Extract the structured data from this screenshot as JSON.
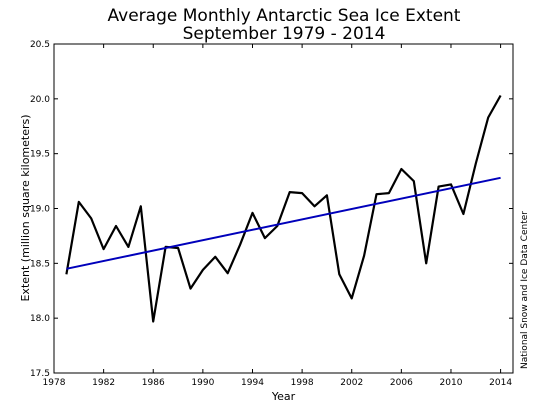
{
  "chart_data": {
    "type": "line",
    "title": "Average Monthly Antarctic Sea Ice Extent",
    "subtitle": "September 1979 - 2014",
    "xlabel": "Year",
    "ylabel": "Extent (million square kilometers)",
    "credit": "National Snow and Ice Data Center",
    "xlim": [
      1978,
      2015
    ],
    "ylim": [
      17.5,
      20.5
    ],
    "xticks": [
      1978,
      1982,
      1986,
      1990,
      1994,
      1998,
      2002,
      2006,
      2010,
      2014
    ],
    "yticks": [
      17.5,
      18.0,
      18.5,
      19.0,
      19.5,
      20.0,
      20.5
    ],
    "grid": false,
    "series": [
      {
        "color": "#000000",
        "x": [
          1979,
          1980,
          1981,
          1982,
          1983,
          1984,
          1985,
          1986,
          1987,
          1988,
          1989,
          1990,
          1991,
          1992,
          1993,
          1994,
          1995,
          1996,
          1997,
          1998,
          1999,
          2000,
          2001,
          2002,
          2003,
          2004,
          2005,
          2006,
          2007,
          2008,
          2009,
          2010,
          2011,
          2012,
          2013,
          2014
        ],
        "values": [
          18.4,
          19.06,
          18.91,
          18.63,
          18.84,
          18.65,
          19.02,
          17.97,
          18.65,
          18.64,
          18.27,
          18.44,
          18.56,
          18.41,
          18.67,
          18.96,
          18.73,
          18.84,
          19.15,
          19.14,
          19.02,
          19.12,
          18.4,
          18.18,
          18.57,
          19.13,
          19.14,
          19.36,
          19.25,
          18.5,
          19.2,
          19.22,
          18.95,
          19.41,
          19.83,
          20.03
        ]
      },
      {
        "type": "trend",
        "color": "#0000bb",
        "x": [
          1979,
          2014
        ],
        "values": [
          18.45,
          19.28
        ]
      }
    ]
  }
}
